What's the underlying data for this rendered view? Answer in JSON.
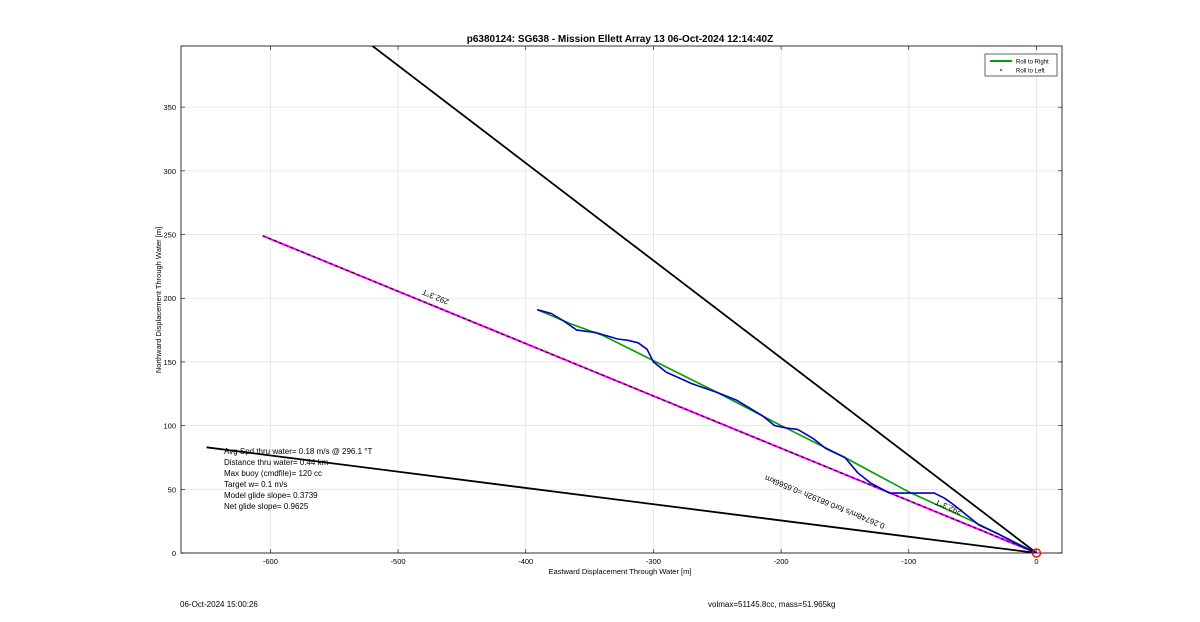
{
  "chart_data": {
    "type": "line",
    "title": "p6380124: SG638 - Mission Ellett Array 13 06-Oct-2024 12:14:40Z",
    "xlabel": "Eastward Displacement Through Water [m]",
    "ylabel": "Northward Displacement Through Water [m]",
    "xlim": [
      -670,
      20
    ],
    "ylim": [
      0,
      398
    ],
    "xticks": [
      -600,
      -500,
      -400,
      -300,
      -200,
      -100,
      0
    ],
    "yticks": [
      0,
      50,
      100,
      150,
      200,
      250,
      300,
      350
    ],
    "grid": true,
    "legend_position": "top-right",
    "legend": [
      {
        "label": "Roll to Right",
        "color": "#00a000",
        "style": "line"
      },
      {
        "label": "Roll to Left",
        "color": "#ff0000",
        "style": "marker"
      }
    ],
    "series": [
      {
        "color": "#00a000",
        "x": [
          -391,
          -365,
          -340,
          -300,
          -250,
          -200,
          -150,
          -100,
          -50,
          0
        ],
        "y": [
          191,
          180,
          171,
          151,
          126,
          100,
          75,
          48,
          25,
          0
        ]
      },
      {
        "color": "#0000c0",
        "x": [
          -391,
          -380,
          -370,
          -360,
          -345,
          -335,
          -328,
          -320,
          -312,
          -305,
          -300,
          -290,
          -270,
          -250,
          -235,
          -215,
          -205,
          -195,
          -187,
          -175,
          -165,
          -150,
          -140,
          -130,
          -115,
          -100,
          -90,
          -80,
          -72,
          -65,
          -55,
          -45,
          -30,
          -15,
          0
        ],
        "y": [
          191,
          188,
          182,
          175,
          173,
          170,
          168,
          167,
          165,
          160,
          150,
          142,
          133,
          126,
          120,
          108,
          100,
          98,
          97,
          90,
          82,
          75,
          63,
          55,
          47,
          47,
          47,
          47,
          43,
          38,
          30,
          22,
          15,
          7,
          0
        ]
      }
    ],
    "reference_lines": [
      {
        "name": "heading-line",
        "color": "#ff00ff",
        "dashed_overlay": true,
        "x": [
          -606,
          0
        ],
        "y": [
          249,
          0
        ]
      },
      {
        "name": "upper-bound-line",
        "color": "#000000",
        "x": [
          -520,
          0
        ],
        "y": [
          398,
          0
        ]
      },
      {
        "name": "lower-bound-line",
        "color": "#000000",
        "x": [
          -650,
          0
        ],
        "y": [
          83,
          0
        ]
      }
    ],
    "annotations": [
      {
        "text": "292.3°T",
        "x": -470,
        "y": 203
      },
      {
        "text": "292.3°T",
        "x": -68,
        "y": 38
      },
      {
        "text": "0.26748m/s for0.68192h =0.6566km",
        "x": -165,
        "y": 42
      }
    ],
    "marker": {
      "x": 0,
      "y": 0,
      "color": "#ff0000"
    },
    "info_lines": [
      "Avg Spd thru water=  0.18 m/s @ 296.1 °T",
      "Distance thru water=  0.44 km",
      "Max buoy (cmdfile)= 120 cc",
      "Target w= 0.1 m/s",
      "Model glide slope= 0.3739",
      "Net glide slope= 0.9625"
    ]
  },
  "footer": {
    "left": "06-Oct-2024 15:00:26",
    "right": "volmax=51145.8cc, mass=51.965kg"
  }
}
